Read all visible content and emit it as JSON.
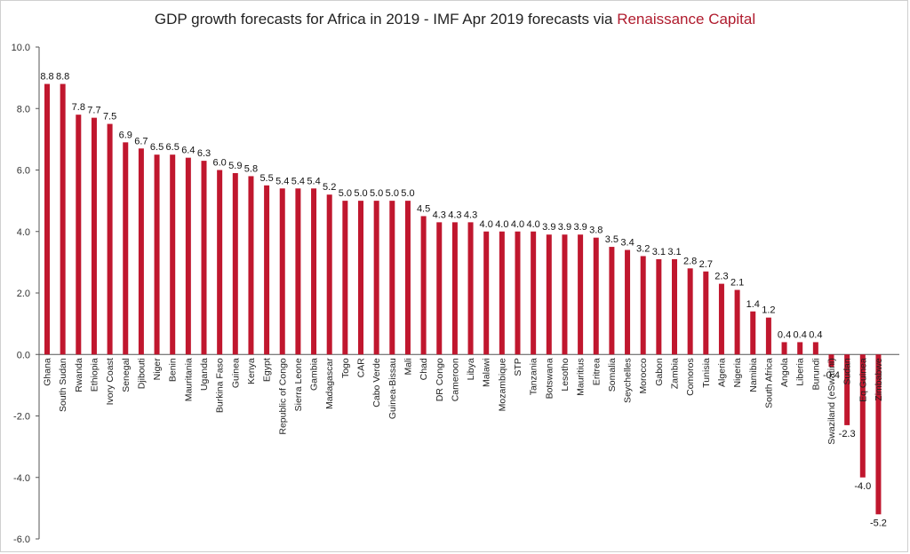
{
  "title": {
    "main": "GDP growth forecasts for Africa in 2019 - IMF Apr 2019 forecasts via ",
    "accent": "Renaissance Capital"
  },
  "colors": {
    "bar": "#c0172e",
    "accent": "#b01c2e",
    "axis": "#555555"
  },
  "chart_data": {
    "type": "bar",
    "title": "GDP growth forecasts for Africa in 2019 - IMF Apr 2019 forecasts via Renaissance Capital",
    "xlabel": "",
    "ylabel": "",
    "ylim": [
      -6.0,
      10.0
    ],
    "yticks": [
      "10.0",
      "8.0",
      "6.0",
      "4.0",
      "2.0",
      "0.0",
      "-2.0",
      "-4.0",
      "-6.0"
    ],
    "grid": false,
    "legend": "none",
    "categories": [
      "Ghana",
      "South Sudan",
      "Rwanda",
      "Ethiopia",
      "Ivory Coast",
      "Senegal",
      "Djibouti",
      "Niger",
      "Benin",
      "Mauritania",
      "Uganda",
      "Burkina Faso",
      "Guinea",
      "Kenya",
      "Egypt",
      "Republic of Congo",
      "Sierra Leone",
      "Gambia",
      "Madagascar",
      "Togo",
      "CAR",
      "Cabo Verde",
      "Guinea-Bissau",
      "Mali",
      "Chad",
      "DR Congo",
      "Cameroon",
      "Libya",
      "Malawi",
      "Mozambique",
      "STP",
      "Tanzania",
      "Botswana",
      "Lesotho",
      "Mauritius",
      "Eritrea",
      "Somalia",
      "Seychelles",
      "Morocco",
      "Gabon",
      "Zambia",
      "Comoros",
      "Tunisia",
      "Algeria",
      "Nigeria",
      "Namibia",
      "South Africa",
      "Angola",
      "Liberia",
      "Burundi",
      "Swaziland (eSwatini)",
      "Sudan",
      "Eq Guinea",
      "Zimbabwe"
    ],
    "values": [
      8.8,
      8.8,
      7.8,
      7.7,
      7.5,
      6.9,
      6.7,
      6.5,
      6.5,
      6.4,
      6.3,
      6.0,
      5.9,
      5.8,
      5.5,
      5.4,
      5.4,
      5.4,
      5.2,
      5.0,
      5.0,
      5.0,
      5.0,
      5.0,
      4.5,
      4.3,
      4.3,
      4.3,
      4.0,
      4.0,
      4.0,
      4.0,
      3.9,
      3.9,
      3.9,
      3.8,
      3.5,
      3.4,
      3.2,
      3.1,
      3.1,
      2.8,
      2.7,
      2.3,
      2.1,
      1.4,
      1.2,
      0.4,
      0.4,
      0.4,
      -0.4,
      -2.3,
      -4.0,
      -5.2
    ],
    "value_labels": [
      "8.8",
      "8.8",
      "7.8",
      "7.7",
      "7.5",
      "6.9",
      "6.7",
      "6.5",
      "6.5",
      "6.4",
      "6.3",
      "6.0",
      "5.9",
      "5.8",
      "5.5",
      "5.4",
      "5.4",
      "5.4",
      "5.2",
      "5.0",
      "5.0",
      "5.0",
      "5.0",
      "5.0",
      "4.5",
      "4.3",
      "4.3",
      "4.3",
      "4.0",
      "4.0",
      "4.0",
      "4.0",
      "3.9",
      "3.9",
      "3.9",
      "3.8",
      "3.5",
      "3.4",
      "3.2",
      "3.1",
      "3.1",
      "2.8",
      "2.7",
      "2.3",
      "2.1",
      "1.4",
      "1.2",
      "0.4",
      "0.4",
      "0.4",
      "-0.4",
      "-2.3",
      "-4.0",
      "-5.2"
    ]
  }
}
